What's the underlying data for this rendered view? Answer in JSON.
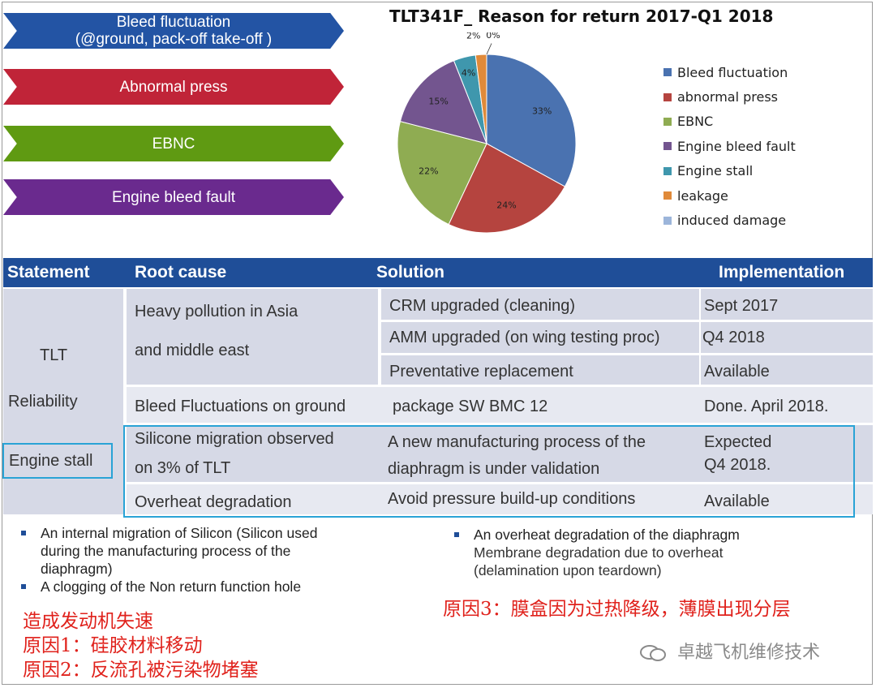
{
  "arrows": [
    {
      "line1": "Bleed fluctuation",
      "line2": "(@ground, pack-off take-off )",
      "color": "#2354a4"
    },
    {
      "line1": "Abnormal press",
      "line2": "",
      "color": "#c02438"
    },
    {
      "line1": "EBNC",
      "line2": "",
      "color": "#5f9a12"
    },
    {
      "line1": "Engine bleed fault",
      "line2": "",
      "color": "#6a2a8e"
    }
  ],
  "chart_data": {
    "type": "pie",
    "title": "TLT341F_ Reason for return 2017-Q1 2018",
    "slices": [
      {
        "name": "Bleed fluctuation",
        "value": 33,
        "label": "33%",
        "color": "#4a72b0"
      },
      {
        "name": "abnormal press",
        "value": 24,
        "label": "24%",
        "color": "#b5443f"
      },
      {
        "name": "EBNC",
        "value": 22,
        "label": "22%",
        "color": "#8fac52"
      },
      {
        "name": "Engine bleed fault",
        "value": 15,
        "label": "15%",
        "color": "#73558f"
      },
      {
        "name": "Engine stall",
        "value": 4,
        "label": "4%",
        "color": "#3f97ad"
      },
      {
        "name": "leakage",
        "value": 2,
        "label": "2%",
        "color": "#e08a3a"
      },
      {
        "name": "induced damage",
        "value": 0,
        "label": "0%",
        "color": "#9cb5da"
      }
    ],
    "legend_position": "right"
  },
  "table": {
    "headers": {
      "statement": "Statement",
      "root_cause": "Root cause",
      "solution": "Solution",
      "implementation": "Implementation"
    },
    "statement_tlt": "TLT",
    "statement_reliability": "Reliability",
    "statement_engine_stall": "Engine stall",
    "rows": {
      "r1_cause_a": "Heavy  pollution in Asia",
      "r1_cause_b": "and middle east",
      "r1_sol_1": "CRM upgraded (cleaning)",
      "r1_impl_1": "Sept 2017",
      "r1_sol_2": "AMM upgraded (on wing testing proc)",
      "r1_impl_2": "Q4 2018",
      "r1_sol_3": "Preventative replacement",
      "r1_impl_3": "Available",
      "r2_cause": "Bleed Fluctuations on ground",
      "r2_sol": "package SW BMC 12",
      "r2_impl": "Done. April 2018.",
      "r3_cause_a": "Silicone migration observed",
      "r3_cause_b": "on 3% of TLT",
      "r3_sol_a": "A new manufacturing process of the",
      "r3_sol_b": "diaphragm is under validation",
      "r3_impl_a": "Expected",
      "r3_impl_b": "Q4 2018.",
      "r4_cause": "Overheat degradation",
      "r4_sol": "Avoid pressure build-up conditions",
      "r4_impl": "Available"
    }
  },
  "notes_left": {
    "b1_l1": "An internal migration  of Silicon (Silicon used",
    "b1_l2": "during the manufacturing process of the",
    "b1_l3": "diaphragm)",
    "b2": "A clogging of the Non return function hole"
  },
  "notes_right": {
    "b1": "An overheat degradation of the diaphragm",
    "sub1": "Membrane degradation due to overheat",
    "sub2": "(delamination upon teardown)"
  },
  "chinese": {
    "left_1": "造成发动机失速",
    "left_2": "原因1：硅胶材料移动",
    "left_3": "原因2：反流孔被污染物堵塞",
    "right_1": "原因3：膜盒因为过热降级，薄膜出现分层"
  },
  "watermark": "卓越飞机维修技术"
}
